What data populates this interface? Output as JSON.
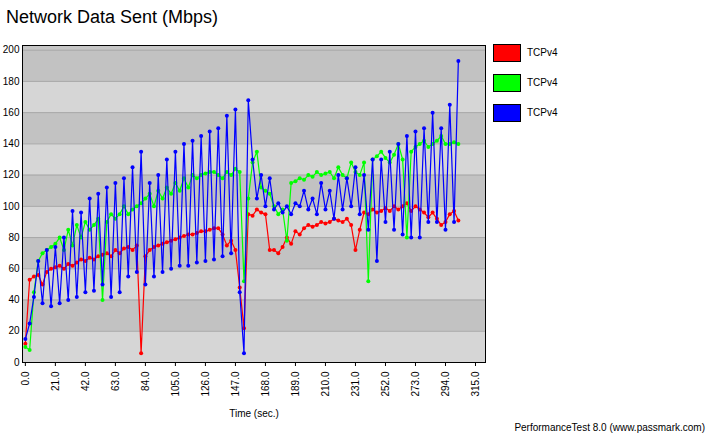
{
  "chart_data": {
    "type": "line",
    "title": "Network Data Sent (Mbps)",
    "x_label": "Time (sec.)",
    "caption": "PerformanceTest 8.0 (www.passmark.com)",
    "x": [
      0,
      3,
      6,
      9,
      12,
      15,
      18,
      21,
      24,
      27,
      30,
      33,
      36,
      39,
      42,
      45,
      48,
      51,
      54,
      57,
      60,
      63,
      66,
      69,
      72,
      75,
      78,
      81,
      84,
      87,
      90,
      93,
      96,
      99,
      102,
      105,
      108,
      111,
      114,
      117,
      120,
      123,
      126,
      129,
      132,
      135,
      138,
      141,
      144,
      147,
      150,
      153,
      156,
      159,
      162,
      165,
      168,
      171,
      174,
      177,
      180,
      183,
      186,
      189,
      192,
      195,
      198,
      201,
      204,
      207,
      210,
      213,
      216,
      219,
      222,
      225,
      228,
      231,
      234,
      237,
      240,
      243,
      246,
      249,
      252,
      255,
      258,
      261,
      264,
      267,
      270,
      273,
      276,
      279,
      282,
      285,
      288,
      291,
      294,
      297,
      300,
      303
    ],
    "series": [
      {
        "name": "TCPv4",
        "color": "#ff0000",
        "marker": "circle",
        "line_style": "solid",
        "values": [
          12,
          53,
          55,
          56,
          50,
          58,
          60,
          61,
          62,
          60,
          63,
          62,
          64,
          66,
          65,
          67,
          66,
          68,
          69,
          70,
          68,
          72,
          70,
          73,
          74,
          72,
          75,
          6,
          68,
          72,
          74,
          75,
          76,
          77,
          78,
          79,
          80,
          81,
          82,
          82,
          83,
          84,
          84,
          85,
          86,
          86,
          82,
          75,
          78,
          72,
          48,
          22,
          95,
          94,
          98,
          96,
          95,
          72,
          72,
          70,
          74,
          80,
          76,
          84,
          82,
          86,
          88,
          87,
          88,
          90,
          89,
          90,
          92,
          91,
          90,
          92,
          88,
          72,
          85,
          96,
          95,
          98,
          96,
          97,
          99,
          97,
          100,
          98,
          100,
          102,
          97,
          100,
          98,
          96,
          93,
          96,
          92,
          88,
          90,
          95,
          97,
          91
        ]
      },
      {
        "name": "TCPv4",
        "color": "#00ff00",
        "marker": "circle",
        "line_style": "solid",
        "values": [
          10,
          8,
          45,
          65,
          70,
          72,
          74,
          76,
          80,
          72,
          85,
          75,
          88,
          80,
          90,
          85,
          88,
          92,
          40,
          90,
          95,
          92,
          95,
          100,
          95,
          98,
          100,
          102,
          105,
          108,
          100,
          110,
          105,
          112,
          108,
          115,
          110,
          118,
          112,
          120,
          118,
          120,
          121,
          122,
          122,
          120,
          118,
          122,
          120,
          124,
          122,
          52,
          105,
          128,
          135,
          112,
          110,
          108,
          100,
          95,
          98,
          78,
          115,
          116,
          118,
          117,
          120,
          119,
          122,
          120,
          121,
          122,
          118,
          125,
          120,
          118,
          128,
          122,
          120,
          128,
          52,
          130,
          132,
          135,
          131,
          128,
          133,
          140,
          130,
          80,
          135,
          138,
          140,
          142,
          138,
          140,
          142,
          145,
          140,
          140,
          141,
          140
        ]
      },
      {
        "name": "TCPv4",
        "color": "#0000ff",
        "marker": "circle",
        "line_style": "solid",
        "values": [
          15,
          25,
          42,
          65,
          38,
          72,
          36,
          74,
          38,
          80,
          40,
          97,
          42,
          96,
          45,
          105,
          46,
          108,
          50,
          112,
          42,
          115,
          45,
          118,
          55,
          125,
          58,
          135,
          50,
          115,
          55,
          120,
          58,
          130,
          60,
          135,
          62,
          140,
          62,
          142,
          64,
          145,
          65,
          148,
          66,
          150,
          68,
          158,
          70,
          162,
          45,
          6,
          168,
          130,
          105,
          120,
          100,
          118,
          98,
          102,
          96,
          100,
          95,
          102,
          100,
          110,
          98,
          105,
          95,
          115,
          98,
          110,
          92,
          120,
          98,
          118,
          100,
          125,
          95,
          120,
          85,
          130,
          65,
          130,
          90,
          135,
          85,
          140,
          82,
          145,
          80,
          148,
          80,
          150,
          90,
          160,
          90,
          150,
          85,
          165,
          90,
          193
        ]
      }
    ],
    "xlim": [
      -2,
      322
    ],
    "xticks": [
      {
        "value": 0,
        "label": "0.0"
      },
      {
        "value": 21,
        "label": "21.0"
      },
      {
        "value": 42,
        "label": "42.0"
      },
      {
        "value": 63,
        "label": "63.0"
      },
      {
        "value": 84,
        "label": "84.0"
      },
      {
        "value": 105,
        "label": "105.0"
      },
      {
        "value": 126,
        "label": "126.0"
      },
      {
        "value": 147,
        "label": "147.0"
      },
      {
        "value": 168,
        "label": "168.0"
      },
      {
        "value": 189,
        "label": "189.0"
      },
      {
        "value": 210,
        "label": "210.0"
      },
      {
        "value": 231,
        "label": "231.0"
      },
      {
        "value": 252,
        "label": "252.0"
      },
      {
        "value": 273,
        "label": "273.0"
      },
      {
        "value": 294,
        "label": "294.0"
      },
      {
        "value": 315,
        "label": "315.0"
      }
    ],
    "ylim": [
      0,
      203
    ],
    "yticks": [
      0,
      20,
      40,
      60,
      80,
      100,
      120,
      140,
      160,
      180,
      200
    ],
    "grid": true,
    "legend": "right"
  }
}
